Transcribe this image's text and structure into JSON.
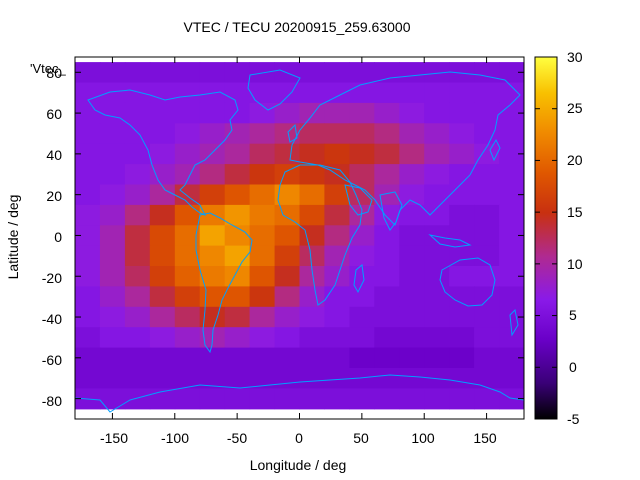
{
  "chart_data": {
    "type": "heatmap",
    "title": "VTEC / TECU 20200915_259.63000",
    "xlabel": "Longitude / deg",
    "ylabel": "Latitude / deg",
    "xlim": [
      -180,
      180
    ],
    "ylim": [
      -90,
      87.5
    ],
    "xticks": [
      -150,
      -100,
      -50,
      0,
      50,
      100,
      150
    ],
    "yticks": [
      -80,
      -60,
      -40,
      -20,
      0,
      20,
      40,
      60,
      80
    ],
    "xtick_labels": [
      "-150",
      "-100",
      "-50",
      "0",
      "50",
      "100",
      "150"
    ],
    "ytick_labels": [
      "-80",
      "-60",
      "-40",
      "-20",
      "0",
      "20",
      "40",
      "60",
      "80"
    ],
    "colorbar": {
      "min": -5,
      "max": 30,
      "ticks": [
        -5,
        0,
        5,
        10,
        15,
        20,
        25,
        30
      ],
      "tick_labels": [
        "-5",
        "0",
        "5",
        "10",
        "15",
        "20",
        "25",
        "30"
      ],
      "palette": [
        "#000000",
        "#3a0078",
        "#6a00c8",
        "#8a1ae8",
        "#b02a90",
        "#c83010",
        "#e05800",
        "#f08a00",
        "#f8c000",
        "#ffff40"
      ]
    },
    "legend_label": "'Vtec_",
    "coastline_color": "#00a0ff",
    "grid": false,
    "lat_rows": [
      80,
      70,
      60,
      50,
      40,
      30,
      20,
      10,
      0,
      -10,
      -20,
      -30,
      -40,
      -50,
      -60,
      -70,
      -80
    ],
    "lon_cols": [
      -170,
      -150,
      -130,
      -110,
      -90,
      -70,
      -50,
      -30,
      -10,
      10,
      30,
      50,
      70,
      90,
      110,
      130,
      150,
      170
    ],
    "values": [
      [
        5,
        5,
        5,
        5,
        5,
        5,
        5,
        5,
        5,
        5,
        5,
        5,
        5,
        5,
        5,
        5,
        5,
        5
      ],
      [
        6,
        6,
        6,
        6,
        6,
        6,
        6,
        6,
        6,
        6,
        6,
        6,
        6,
        6,
        6,
        6,
        6,
        6
      ],
      [
        6,
        6,
        6,
        6,
        6,
        6,
        6,
        7,
        8,
        9,
        9,
        9,
        8,
        7,
        6,
        6,
        6,
        6
      ],
      [
        6,
        6,
        6,
        6,
        7,
        8,
        9,
        10,
        11,
        12,
        12,
        12,
        11,
        9,
        8,
        7,
        6,
        6
      ],
      [
        6,
        6,
        6,
        7,
        8,
        9,
        10,
        12,
        13,
        14,
        15,
        14,
        13,
        11,
        9,
        8,
        7,
        6
      ],
      [
        6,
        6,
        7,
        8,
        9,
        11,
        13,
        15,
        16,
        15,
        14,
        12,
        10,
        8,
        7,
        6,
        6,
        6
      ],
      [
        6,
        7,
        8,
        10,
        13,
        16,
        18,
        20,
        22,
        20,
        16,
        12,
        9,
        7,
        6,
        6,
        6,
        6
      ],
      [
        7,
        8,
        11,
        14,
        18,
        21,
        23,
        21,
        20,
        17,
        13,
        10,
        7,
        6,
        6,
        5,
        5,
        6
      ],
      [
        7,
        9,
        13,
        17,
        20,
        24,
        22,
        20,
        18,
        14,
        11,
        8,
        6,
        5,
        5,
        5,
        5,
        6
      ],
      [
        7,
        9,
        13,
        17,
        20,
        22,
        24,
        20,
        16,
        12,
        9,
        7,
        6,
        5,
        5,
        5,
        5,
        6
      ],
      [
        7,
        9,
        12,
        16,
        19,
        21,
        22,
        18,
        14,
        10,
        8,
        6,
        6,
        5,
        5,
        6,
        6,
        6
      ],
      [
        6,
        8,
        10,
        13,
        16,
        18,
        18,
        15,
        11,
        8,
        6,
        6,
        5,
        5,
        5,
        5,
        5,
        5
      ],
      [
        6,
        7,
        8,
        10,
        12,
        14,
        13,
        10,
        8,
        7,
        6,
        5,
        5,
        5,
        5,
        5,
        5,
        5
      ],
      [
        5,
        6,
        6,
        7,
        8,
        9,
        8,
        7,
        6,
        5,
        5,
        5,
        4,
        4,
        4,
        4,
        5,
        5
      ],
      [
        4,
        4,
        4,
        4,
        4,
        4,
        4,
        4,
        4,
        4,
        4,
        3,
        3,
        3,
        3,
        3,
        4,
        4
      ],
      [
        4,
        4,
        4,
        4,
        4,
        4,
        4,
        4,
        4,
        4,
        4,
        4,
        4,
        4,
        4,
        4,
        4,
        4
      ],
      [
        5,
        5,
        5,
        5,
        5,
        5,
        5,
        5,
        5,
        5,
        5,
        5,
        5,
        5,
        5,
        5,
        5,
        5
      ]
    ]
  }
}
